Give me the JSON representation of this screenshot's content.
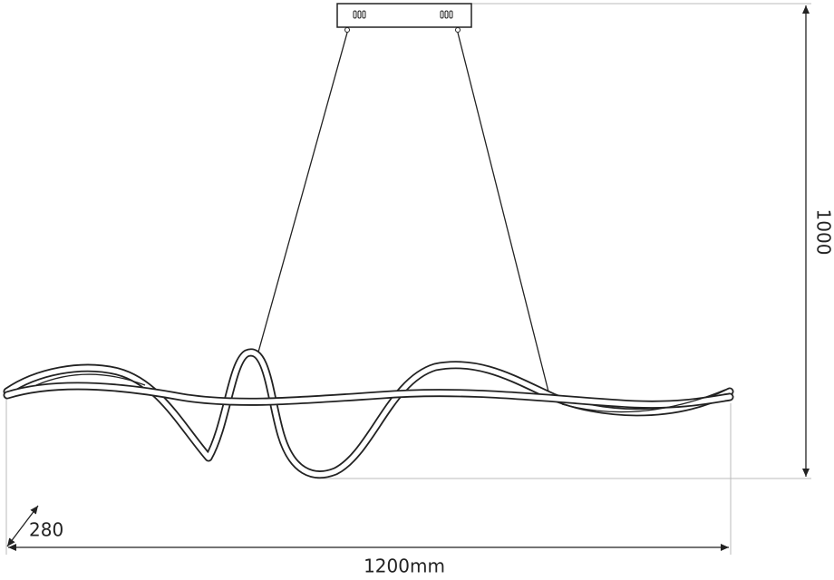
{
  "dimensions": {
    "height": "1000",
    "depth": "280",
    "width": "1200mm"
  }
}
